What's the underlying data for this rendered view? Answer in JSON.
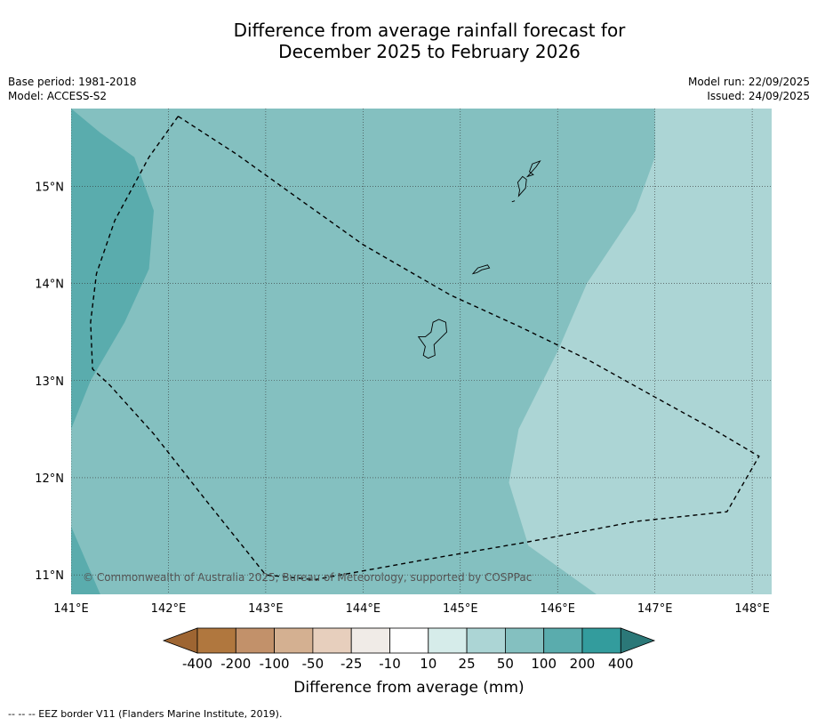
{
  "title": {
    "line1": "Difference from average rainfall forecast for",
    "line2": "December 2025 to February 2026"
  },
  "meta_left": {
    "base_period": "Base period: 1981-2018",
    "model": "Model: ACCESS-S2"
  },
  "meta_right": {
    "model_run": "Model run: 22/09/2025",
    "issued": "Issued: 24/09/2025"
  },
  "map": {
    "lon_range": [
      141.0,
      148.2
    ],
    "lat_range": [
      10.8,
      15.8
    ],
    "lon_ticks": [
      141,
      142,
      143,
      144,
      145,
      146,
      147,
      148
    ],
    "lat_ticks": [
      11,
      12,
      13,
      14,
      15
    ],
    "lon_tick_labels": [
      "141°E",
      "142°E",
      "143°E",
      "144°E",
      "145°E",
      "146°E",
      "147°E",
      "148°E"
    ],
    "lat_tick_labels": [
      "11°N",
      "12°N",
      "13°N",
      "14°N",
      "15°N"
    ],
    "gridlines": true,
    "copyright": "© Commonwealth of Australia 2025, Bureau of Meteorology, supported by COSPPac",
    "regions": [
      {
        "category": "25 to 50",
        "color": "#acd5d5",
        "points": [
          [
            147.0,
            15.8
          ],
          [
            148.2,
            15.8
          ],
          [
            148.2,
            10.8
          ],
          [
            146.4,
            10.8
          ],
          [
            145.7,
            11.3
          ],
          [
            145.5,
            11.95
          ],
          [
            145.6,
            12.5
          ],
          [
            146.0,
            13.3
          ],
          [
            146.3,
            14.0
          ],
          [
            146.8,
            14.75
          ],
          [
            147.0,
            15.3
          ]
        ]
      },
      {
        "category": "100 to 200",
        "color": "#5aacad",
        "points": [
          [
            141.0,
            15.8
          ],
          [
            141.3,
            15.55
          ],
          [
            141.65,
            15.3
          ],
          [
            141.85,
            14.75
          ],
          [
            141.8,
            14.15
          ],
          [
            141.55,
            13.6
          ],
          [
            141.2,
            13.0
          ],
          [
            141.0,
            12.5
          ]
        ]
      },
      {
        "category": "100 to 200",
        "color": "#5aacad",
        "points": [
          [
            141.0,
            11.5
          ],
          [
            141.3,
            10.8
          ],
          [
            141.0,
            10.8
          ]
        ]
      }
    ],
    "base_color": "#84c0c0",
    "eez_border": [
      [
        142.1,
        15.72
      ],
      [
        142.7,
        15.33
      ],
      [
        143.3,
        14.9
      ],
      [
        144.0,
        14.4
      ],
      [
        144.9,
        13.88
      ],
      [
        145.6,
        13.56
      ],
      [
        146.3,
        13.22
      ],
      [
        147.0,
        12.83
      ],
      [
        147.6,
        12.5
      ],
      [
        148.07,
        12.22
      ],
      [
        147.74,
        11.65
      ],
      [
        146.8,
        11.55
      ],
      [
        145.7,
        11.34
      ],
      [
        144.6,
        11.15
      ],
      [
        143.5,
        10.95
      ],
      [
        143.0,
        11.0
      ],
      [
        142.4,
        11.75
      ],
      [
        141.85,
        12.45
      ],
      [
        141.4,
        12.95
      ],
      [
        141.22,
        13.12
      ],
      [
        141.2,
        13.6
      ],
      [
        141.26,
        14.1
      ],
      [
        141.45,
        14.65
      ],
      [
        141.8,
        15.3
      ],
      [
        142.1,
        15.72
      ]
    ],
    "islands": [
      {
        "name": "",
        "points": [
          [
            144.72,
            13.6
          ],
          [
            144.78,
            13.63
          ],
          [
            144.85,
            13.6
          ],
          [
            144.86,
            13.5
          ],
          [
            144.78,
            13.42
          ],
          [
            144.73,
            13.37
          ],
          [
            144.74,
            13.26
          ],
          [
            144.67,
            13.23
          ],
          [
            144.62,
            13.26
          ],
          [
            144.64,
            13.35
          ],
          [
            144.57,
            13.45
          ],
          [
            144.64,
            13.45
          ],
          [
            144.7,
            13.5
          ]
        ]
      },
      {
        "name": "",
        "points": [
          [
            145.13,
            14.1
          ],
          [
            145.18,
            14.16
          ],
          [
            145.28,
            14.19
          ],
          [
            145.3,
            14.16
          ],
          [
            145.22,
            14.14
          ],
          [
            145.17,
            14.11
          ]
        ]
      },
      {
        "name": "",
        "points": [
          [
            145.6,
            14.9
          ],
          [
            145.67,
            14.98
          ],
          [
            145.68,
            15.07
          ],
          [
            145.64,
            15.1
          ],
          [
            145.59,
            15.04
          ],
          [
            145.61,
            14.96
          ]
        ]
      },
      {
        "name": "",
        "points": [
          [
            145.69,
            15.1
          ],
          [
            145.78,
            15.2
          ],
          [
            145.82,
            15.26
          ],
          [
            145.74,
            15.23
          ],
          [
            145.71,
            15.15
          ],
          [
            145.75,
            15.12
          ]
        ]
      },
      {
        "name": "",
        "points": [
          [
            145.53,
            14.84
          ],
          [
            145.56,
            14.85
          ]
        ]
      }
    ]
  },
  "colorbar": {
    "title": "Difference from average (mm)",
    "labels": [
      "-400",
      "-200",
      "-100",
      "-50",
      "-25",
      "-10",
      "10",
      "25",
      "50",
      "100",
      "200",
      "400"
    ],
    "colors": [
      "#b0773e",
      "#c2916a",
      "#d4b091",
      "#e7cfbd",
      "#f0ebe7",
      "#ffffff",
      "#d6ecea",
      "#acd5d5",
      "#84c0c0",
      "#5aacad",
      "#339c9d"
    ],
    "extend_low_color": "#9e6532",
    "extend_high_color": "#2b7878"
  },
  "footnote": "--  --  -- EEZ border V11 (Flanders Marine Institute, 2019)."
}
